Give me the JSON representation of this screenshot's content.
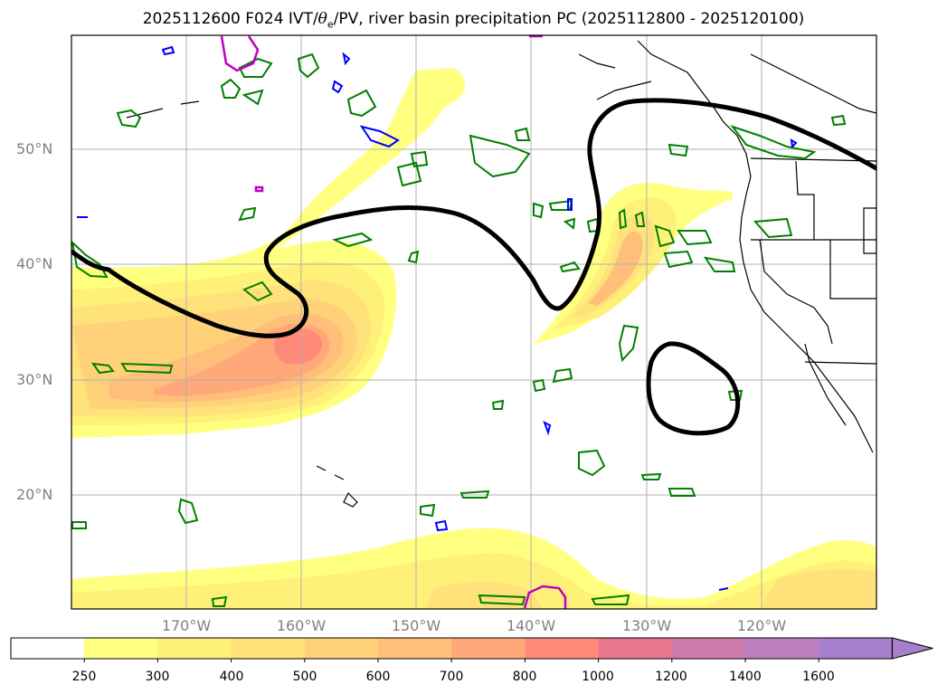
{
  "title_prefix": "2025112600 F024 IVT/",
  "title_theta": "θ",
  "title_sub": "e",
  "title_suffix": "/PV, river basin precipitation PC (2025112800 - 2025120100)",
  "lat_labels": [
    "50°N",
    "40°N",
    "30°N",
    "20°N"
  ],
  "lon_labels": [
    "170°W",
    "160°W",
    "150°W",
    "140°W",
    "130°W",
    "120°W"
  ],
  "colorbar": {
    "ticks": [
      "250",
      "300",
      "400",
      "500",
      "600",
      "700",
      "800",
      "1000",
      "1200",
      "1400",
      "1600"
    ],
    "colors": [
      "#ffffff",
      "#ffff80",
      "#fff07a",
      "#ffe27a",
      "#ffd27a",
      "#ffbf7a",
      "#ffa87a",
      "#ff8a7a",
      "#e8788f",
      "#cf7bab",
      "#bb7fc0",
      "#a680cc"
    ],
    "extend": "max"
  },
  "colors": {
    "contour_black": "#000000",
    "pv_green": "#008000",
    "pv_blue": "#0000ff",
    "pv_magenta": "#c000c0",
    "coast": "#000000",
    "grid": "#b0b0b0"
  }
}
